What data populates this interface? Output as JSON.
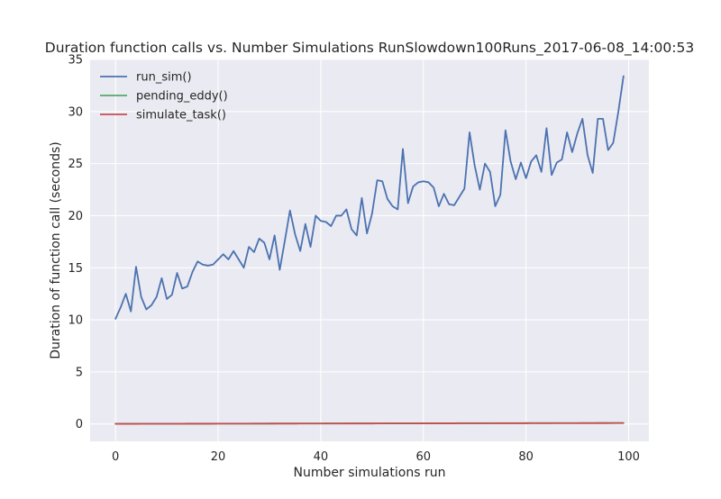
{
  "chart_data": {
    "type": "line",
    "title": "Duration function calls vs. Number Simulations RunSlowdown100Runs_2017-06-08_14:00:53",
    "xlabel": "Number simulations run",
    "ylabel": "Duration of function call (seconds)",
    "xlim": [
      -4.95,
      103.95
    ],
    "ylim": [
      -1.67,
      35
    ],
    "xticks": [
      0,
      20,
      40,
      60,
      80,
      100
    ],
    "yticks": [
      0,
      5,
      10,
      15,
      20,
      25,
      30,
      35
    ],
    "grid": true,
    "legend_position": "top-left",
    "series": [
      {
        "name": "run_sim()",
        "color": "#4c72b0",
        "values": [
          10.1,
          11.2,
          12.5,
          10.8,
          15.1,
          12.2,
          11.0,
          11.4,
          12.2,
          14.0,
          12.0,
          12.4,
          14.5,
          13.0,
          13.2,
          14.6,
          15.6,
          15.3,
          15.2,
          15.3,
          15.8,
          16.3,
          15.8,
          16.6,
          15.8,
          15.0,
          17.0,
          16.5,
          17.8,
          17.4,
          15.8,
          18.1,
          14.8,
          17.6,
          20.5,
          18.2,
          16.6,
          19.2,
          17.0,
          20.0,
          19.5,
          19.4,
          19.0,
          20.0,
          20.0,
          20.6,
          18.7,
          18.1,
          21.7,
          18.3,
          20.2,
          23.4,
          23.3,
          21.6,
          20.9,
          20.6,
          26.4,
          21.2,
          22.8,
          23.2,
          23.3,
          23.2,
          22.7,
          20.9,
          22.1,
          21.1,
          21.0,
          21.8,
          22.6,
          28.0,
          24.8,
          22.5,
          25.0,
          24.2,
          20.9,
          22.0,
          28.2,
          25.2,
          23.5,
          25.1,
          23.6,
          25.2,
          25.8,
          24.2,
          28.4,
          23.9,
          25.1,
          25.4,
          28.0,
          26.1,
          27.9,
          29.3,
          25.8,
          24.1,
          29.3,
          29.3,
          26.3,
          27.0,
          30.0,
          33.4
        ]
      },
      {
        "name": "pending_eddy()",
        "color": "#55a868",
        "start": 0.02,
        "end": 0.1
      },
      {
        "name": "simulate_task()",
        "color": "#c44e52",
        "start": 0.01,
        "end": 0.08
      }
    ]
  }
}
